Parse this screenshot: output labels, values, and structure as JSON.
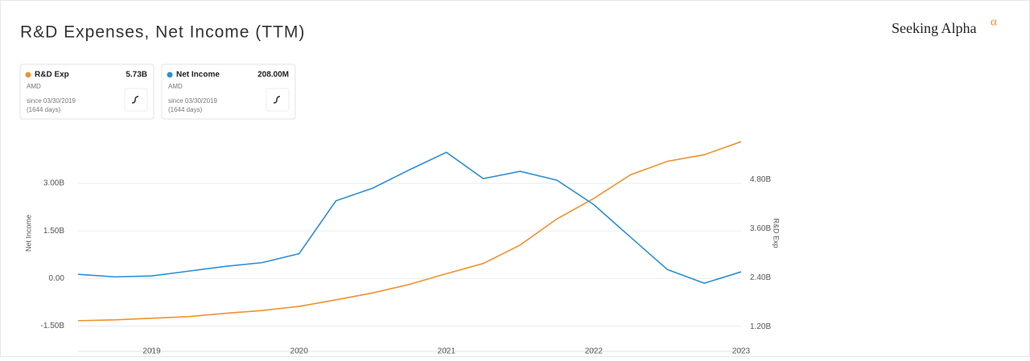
{
  "chart_data": {
    "type": "line",
    "title": "R&D Expenses, Net Income (TTM)",
    "brand": {
      "name": "Seeking Alpha",
      "mark": "α"
    },
    "ylabel": "Net Income",
    "y2label": "R&D Exp",
    "x": [
      2018.5,
      2018.75,
      2019,
      2019.25,
      2019.5,
      2019.75,
      2020,
      2020.25,
      2020.5,
      2020.75,
      2021,
      2021.25,
      2021.5,
      2021.75,
      2022,
      2022.25,
      2022.5,
      2022.75,
      2023
    ],
    "xlim": [
      2018.5,
      2023
    ],
    "xticks": [
      2019,
      2020,
      2021,
      2022,
      2023
    ],
    "ylim": [
      -2.3,
      4.6
    ],
    "yticks": [
      {
        "value": -1.5,
        "label": "-1.50B"
      },
      {
        "value": 0,
        "label": "0.00"
      },
      {
        "value": 1.5,
        "label": "1.50B"
      },
      {
        "value": 3,
        "label": "3.00B"
      }
    ],
    "y2lim": [
      0.6,
      5.95
    ],
    "y2ticks": [
      {
        "value": 1.2,
        "label": "1.20B"
      },
      {
        "value": 2.4,
        "label": "2.40B"
      },
      {
        "value": 3.6,
        "label": "3.60B"
      },
      {
        "value": 4.8,
        "label": "4.80B"
      }
    ],
    "grid": true,
    "series": [
      {
        "name": "R&D Exp",
        "color": "#f0922f",
        "axis": "y2",
        "values": [
          1.35,
          1.37,
          1.41,
          1.45,
          1.53,
          1.6,
          1.7,
          1.86,
          2.03,
          2.24,
          2.5,
          2.75,
          3.2,
          3.84,
          4.34,
          4.92,
          5.25,
          5.41,
          5.73
        ]
      },
      {
        "name": "Net Income",
        "color": "#2d8fd5",
        "axis": "y",
        "values": [
          0.13,
          0.05,
          0.08,
          0.23,
          0.38,
          0.5,
          0.78,
          2.45,
          2.85,
          3.43,
          3.98,
          3.15,
          3.38,
          3.1,
          2.33,
          1.3,
          0.28,
          -0.15,
          0.21
        ]
      }
    ],
    "cards": [
      {
        "value_label": "5.73B",
        "ticker": "AMD",
        "since": "since 03/30/2019",
        "days": "(1644 days)"
      },
      {
        "value_label": "208.00M",
        "ticker": "AMD",
        "since": "since 03/30/2019",
        "days": "(1644 days)"
      }
    ]
  }
}
